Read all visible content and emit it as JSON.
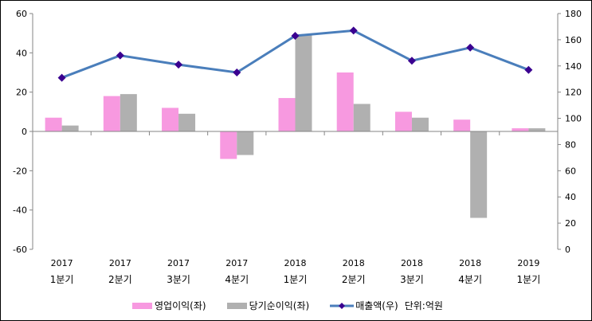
{
  "chart_data": {
    "type": "bar+line",
    "categories": [
      [
        "2017",
        "1분기"
      ],
      [
        "2017",
        "2분기"
      ],
      [
        "2017",
        "3분기"
      ],
      [
        "2017",
        "4분기"
      ],
      [
        "2018",
        "1분기"
      ],
      [
        "2018",
        "2분기"
      ],
      [
        "2018",
        "3분기"
      ],
      [
        "2018",
        "4분기"
      ],
      [
        "2019",
        "1분기"
      ]
    ],
    "series": [
      {
        "name": "영업이익(좌)",
        "type": "bar",
        "axis": "left",
        "color": "#f799e0",
        "values": [
          7,
          18,
          12,
          -14,
          17,
          30,
          10,
          6,
          1.6
        ]
      },
      {
        "name": "당기순이익(좌)",
        "type": "bar",
        "axis": "left",
        "color": "#b0b0b0",
        "values": [
          3,
          19,
          9,
          -12,
          49,
          14,
          7,
          -44,
          1.6
        ]
      },
      {
        "name": "매출액(우)",
        "type": "line",
        "axis": "right",
        "color": "#4a7ebb",
        "marker_color": "#3a0090",
        "values": [
          131,
          148,
          141,
          135,
          163,
          167,
          144,
          154,
          137
        ]
      }
    ],
    "left_axis": {
      "range": [
        -60,
        60
      ],
      "ticks": [
        -60,
        -40,
        -20,
        0,
        20,
        40,
        60
      ]
    },
    "right_axis": {
      "range": [
        0,
        180
      ],
      "ticks": [
        0,
        20,
        40,
        60,
        80,
        100,
        120,
        140,
        160,
        180
      ]
    },
    "unit_note": "단위:억원",
    "legend_position": "bottom"
  }
}
